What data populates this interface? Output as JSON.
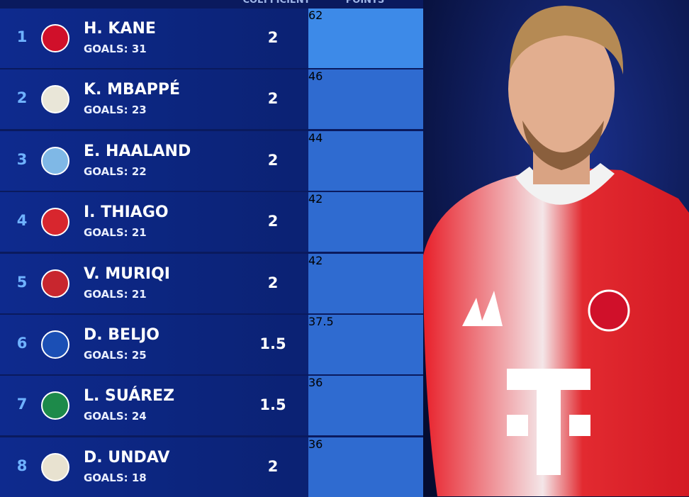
{
  "table": {
    "columns": [
      "COEFFICIENT",
      "POINTS"
    ],
    "rows": [
      {
        "rank": 1,
        "name": "H. KANE",
        "goals": "GOALS: 31",
        "coefficient": 2,
        "points": 62,
        "crest": "#d0102a"
      },
      {
        "rank": 2,
        "name": "K. MBAPPÉ",
        "goals": "GOALS: 23",
        "coefficient": 2,
        "points": 46,
        "crest": "#e9e6d8"
      },
      {
        "rank": 3,
        "name": "E. HAALAND",
        "goals": "GOALS: 22",
        "coefficient": 2,
        "points": 44,
        "crest": "#7fb8e6"
      },
      {
        "rank": 4,
        "name": "I. THIAGO",
        "goals": "GOALS: 21",
        "coefficient": 2,
        "points": 42,
        "crest": "#d8262e"
      },
      {
        "rank": 5,
        "name": "V. MURIQI",
        "goals": "GOALS: 21",
        "coefficient": 2,
        "points": 42,
        "crest": "#c8262e"
      },
      {
        "rank": 6,
        "name": "D. BELJO",
        "goals": "GOALS: 25",
        "coefficient": 1.5,
        "points": 37.5,
        "crest": "#1b4fb5"
      },
      {
        "rank": 7,
        "name": "L. SUÁREZ",
        "goals": "GOALS: 24",
        "coefficient": 1.5,
        "points": 36,
        "crest": "#1d8a4a"
      },
      {
        "rank": 8,
        "name": "D. UNDAV",
        "goals": "GOALS: 18",
        "coefficient": 2,
        "points": 36,
        "crest": "#e8e2d0"
      }
    ]
  }
}
